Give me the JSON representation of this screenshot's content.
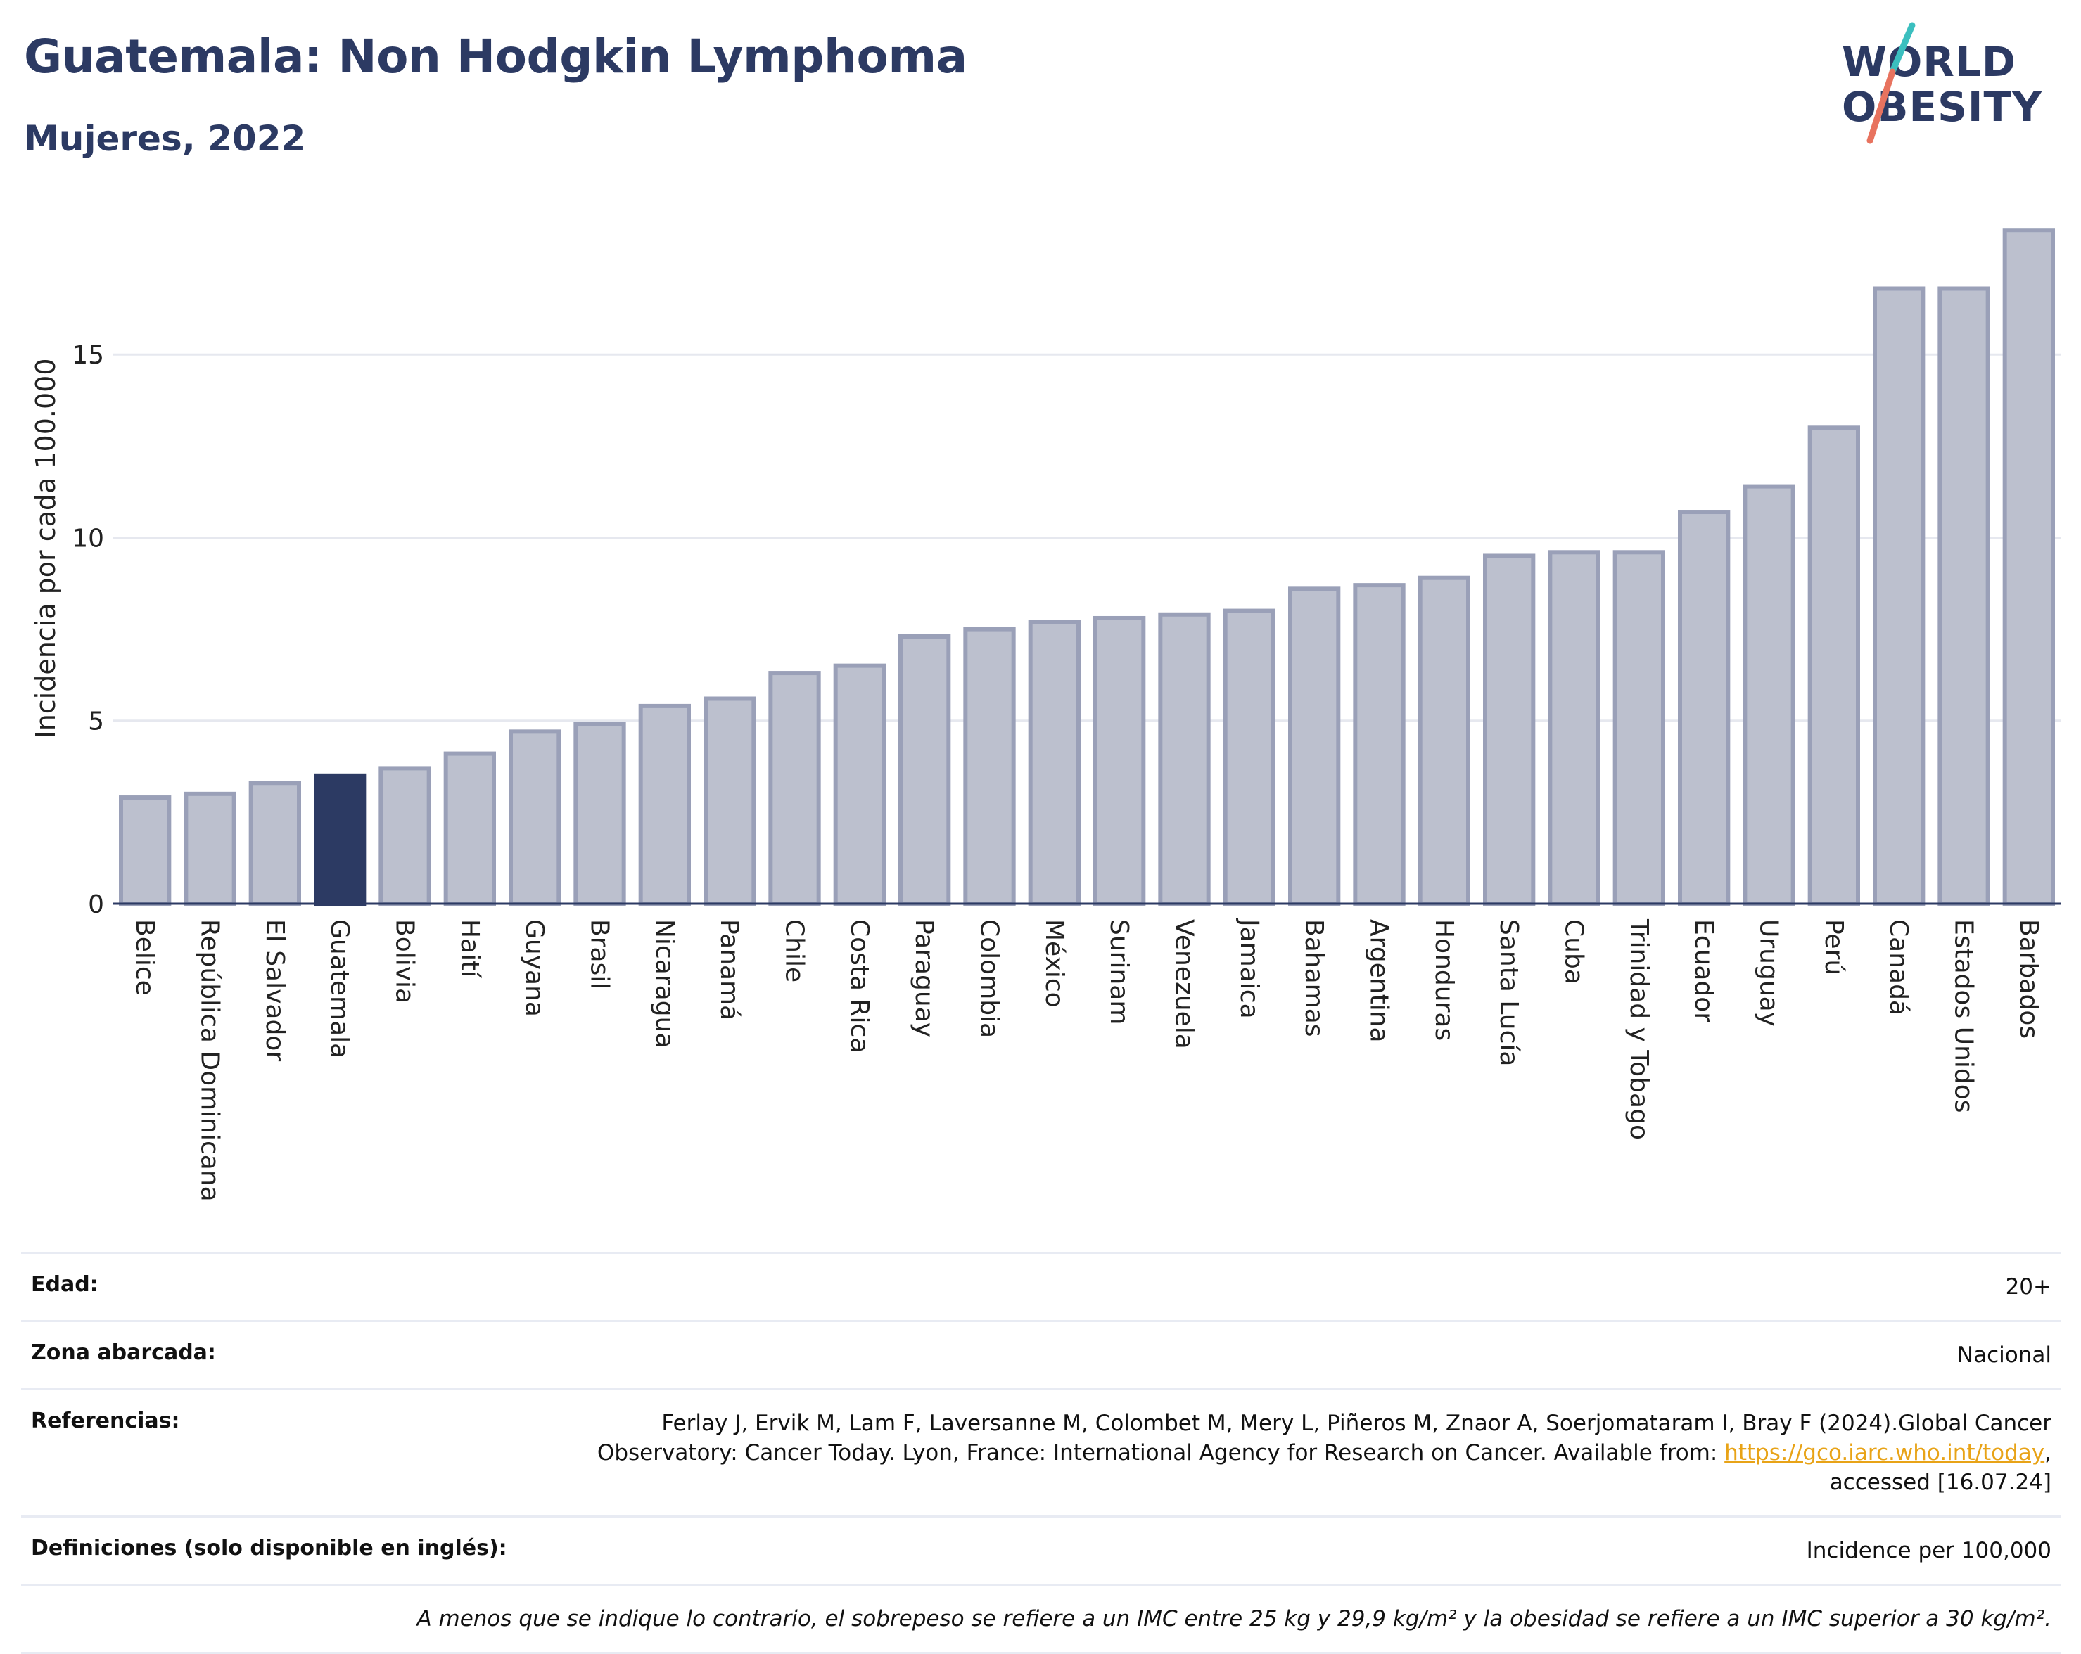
{
  "header": {
    "title": "Guatemala: Non Hodgkin Lymphoma",
    "subtitle": "Mujeres, 2022"
  },
  "logo": {
    "line1": "WORLD",
    "line2": "OBESITY",
    "colors": {
      "text": "#2c3a63",
      "slash_top": "#3bbfbf",
      "slash_bottom": "#e8735f"
    }
  },
  "colors": {
    "bar": "#bcc0ce",
    "bar_edge": "#9aa0b8",
    "highlight": "#2c3a63",
    "grid": "#e6e8ef",
    "axis": "#2c3a63"
  },
  "chart_data": {
    "type": "bar",
    "title": "Guatemala: Non Hodgkin Lymphoma",
    "subtitle": "Mujeres, 2022",
    "xlabel": "",
    "ylabel": "Incidencia por cada 100.000",
    "ylim": [
      0,
      18.5
    ],
    "yticks": [
      0,
      5,
      10,
      15
    ],
    "grid": true,
    "highlight": "Guatemala",
    "categories": [
      "Belice",
      "República Dominicana",
      "El Salvador",
      "Guatemala",
      "Bolivia",
      "Haití",
      "Guyana",
      "Brasil",
      "Nicaragua",
      "Panamá",
      "Chile",
      "Costa Rica",
      "Paraguay",
      "Colombia",
      "México",
      "Surinam",
      "Venezuela",
      "Jamaica",
      "Bahamas",
      "Argentina",
      "Honduras",
      "Santa Lucía",
      "Cuba",
      "Trinidad y Tobago",
      "Ecuador",
      "Uruguay",
      "Perú",
      "Canadá",
      "Estados Unidos",
      "Barbados"
    ],
    "values": [
      2.9,
      3.0,
      3.3,
      3.5,
      3.7,
      4.1,
      4.7,
      4.9,
      5.4,
      5.6,
      6.3,
      6.5,
      7.3,
      7.5,
      7.7,
      7.8,
      7.9,
      8.0,
      8.6,
      8.7,
      8.9,
      9.5,
      9.6,
      9.6,
      10.7,
      11.4,
      13.0,
      16.8,
      16.8,
      18.4
    ]
  },
  "meta": {
    "edad_label": "Edad:",
    "edad_value": "20+",
    "zona_label": "Zona abarcada:",
    "zona_value": "Nacional",
    "ref_label": "Referencias:",
    "ref_text_1": "Ferlay J, Ervik M, Lam F, Laversanne M, Colombet M, Mery L, Piñeros M, Znaor A, Soerjomataram I, Bray F (2024).Global Cancer",
    "ref_text_2": "Observatory: Cancer Today. Lyon, France: International Agency for Research on Cancer. Available from: ",
    "ref_link": "https://gco.iarc.who.int/today",
    "ref_text_3": ",",
    "ref_text_4": "accessed [16.07.24]",
    "def_label": "Definiciones (solo disponible en inglés):",
    "def_value": "Incidence per 100,000",
    "note": "A menos que se indique lo contrario, el sobrepeso se refiere a un IMC entre 25 kg y 29,9 kg/m² y la obesidad se refiere a un IMC superior a 30 kg/m²."
  }
}
